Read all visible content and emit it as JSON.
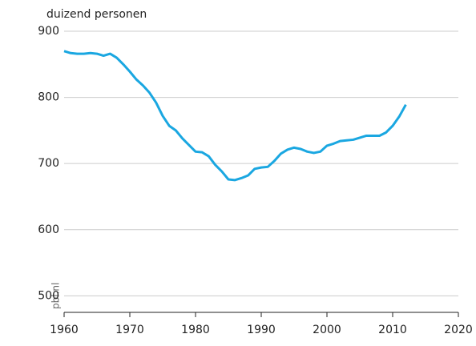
{
  "chart_data": {
    "type": "line",
    "y_label": "duizend personen",
    "watermark": "pbl.nl",
    "x": [
      1960,
      1961,
      1962,
      1963,
      1964,
      1965,
      1966,
      1967,
      1968,
      1969,
      1970,
      1971,
      1972,
      1973,
      1974,
      1975,
      1976,
      1977,
      1978,
      1979,
      1980,
      1981,
      1982,
      1983,
      1984,
      1985,
      1986,
      1987,
      1988,
      1989,
      1990,
      1991,
      1992,
      1993,
      1994,
      1995,
      1996,
      1997,
      1998,
      1999,
      2000,
      2001,
      2002,
      2003,
      2004,
      2005,
      2006,
      2007,
      2008,
      2009,
      2010,
      2011,
      2012
    ],
    "series": [
      {
        "color": "#1aa7e1",
        "values": [
          870,
          867,
          866,
          866,
          867,
          866,
          863,
          866,
          860,
          850,
          839,
          827,
          818,
          807,
          792,
          772,
          757,
          750,
          738,
          728,
          718,
          717,
          711,
          698,
          688,
          676,
          675,
          678,
          682,
          692,
          694,
          695,
          704,
          715,
          721,
          724,
          722,
          718,
          716,
          718,
          727,
          730,
          734,
          735,
          736,
          739,
          742,
          742,
          742,
          747,
          757,
          771,
          789
        ]
      }
    ],
    "xlim": [
      1960,
      2020
    ],
    "xticks": [
      1960,
      1970,
      1980,
      1990,
      2000,
      2010,
      2020
    ],
    "ylim": [
      475,
      900
    ],
    "yticks": [
      500,
      600,
      700,
      800,
      900
    ],
    "grid": true
  }
}
